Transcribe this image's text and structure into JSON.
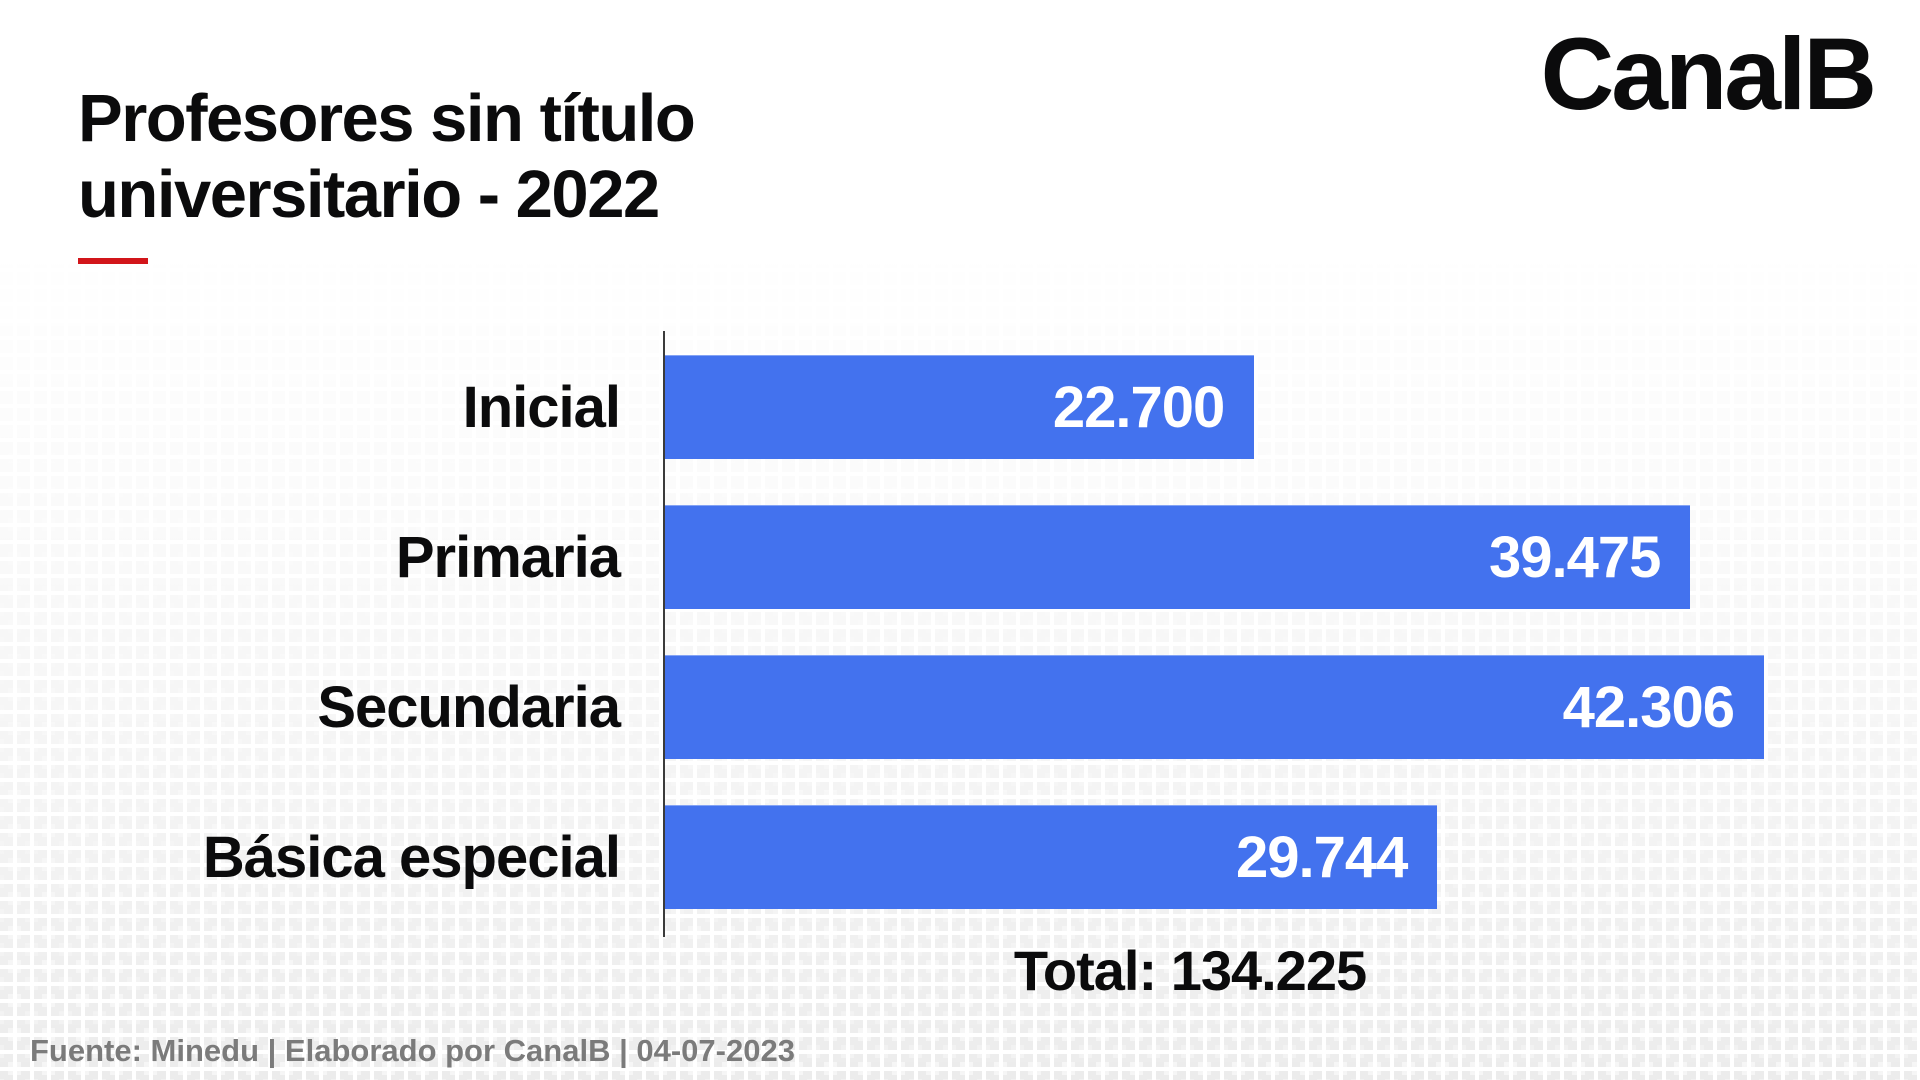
{
  "header": {
    "title_line1": "Profesores sin título",
    "title_line2": "universitario - 2022",
    "logo": "CanalB"
  },
  "chart_data": {
    "type": "bar",
    "orientation": "horizontal",
    "title": "Profesores sin título universitario - 2022",
    "categories": [
      "Inicial",
      "Primaria",
      "Secundaria",
      "Básica especial"
    ],
    "values": [
      22700,
      39475,
      42306,
      29744
    ],
    "value_labels": [
      "22.700",
      "39.475",
      "42.306",
      "29.744"
    ],
    "total": 134225,
    "total_label": "Total: 134.225",
    "xlim": [
      0,
      42306
    ],
    "grid": false,
    "legend": false,
    "bar_color": "#4372ee",
    "value_label_color": "#ffffff"
  },
  "footer": {
    "source": "Fuente: Minedu | Elaborado por CanalB | 04-07-2023"
  },
  "colors": {
    "bar": "#4372ee",
    "accent_red": "#d2151a",
    "text": "#0b0b0c",
    "muted_text": "#7b7b7b",
    "pattern_square": "#ececec",
    "axis": "#3b3b3b",
    "background": "#ffffff"
  }
}
